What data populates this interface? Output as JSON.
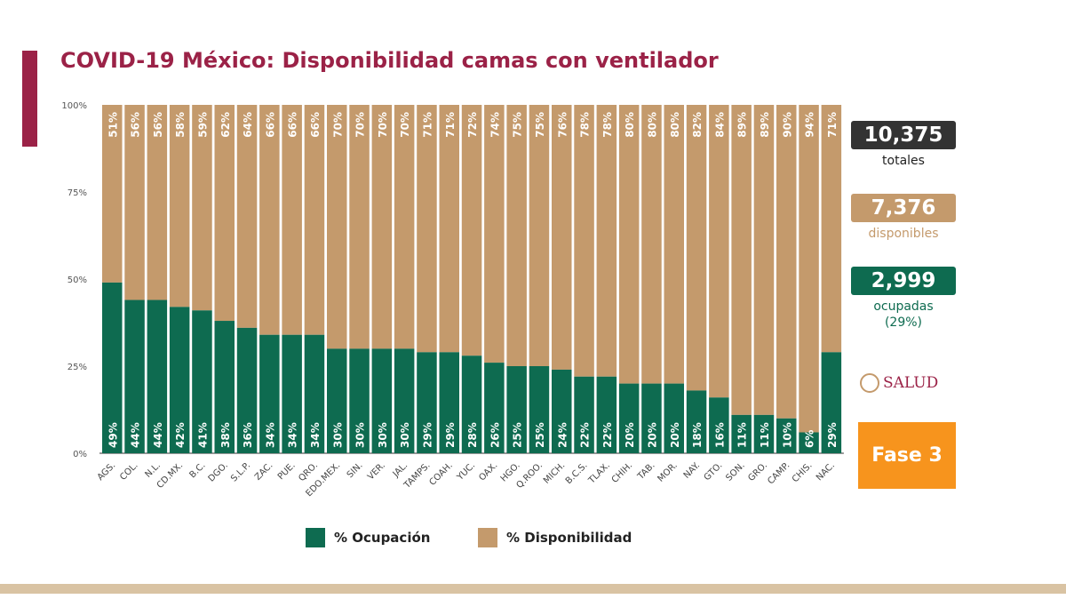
{
  "title": "COVID-19 México: Disponibilidad camas con ventilador",
  "colors": {
    "ocupacion": "#0e6b50",
    "disponibilidad": "#c49a6c",
    "title": "#9b2247",
    "fase": "#f7941d",
    "totales": "#333333"
  },
  "summary": {
    "totales_value": "10,375",
    "totales_label": "totales",
    "disponibles_value": "7,376",
    "disponibles_label": "disponibles",
    "ocupadas_value": "2,999",
    "ocupadas_label": "ocupadas",
    "ocupadas_pct": "(29%)"
  },
  "logo_text": "SALUD",
  "fase": "Fase 3",
  "chart_data": {
    "type": "bar",
    "stacked": true,
    "title": "",
    "ylim": [
      0,
      100
    ],
    "yticks": [
      "0%",
      "25%",
      "50%",
      "75%",
      "100%"
    ],
    "legend_position": "bottom",
    "categories": [
      "AGS.",
      "COL.",
      "N.L.",
      "CD.MX.",
      "B.C.",
      "DGO.",
      "S.L.P.",
      "ZAC.",
      "PUE.",
      "QRO.",
      "EDO.MEX.",
      "SIN.",
      "VER.",
      "JAL.",
      "TAMPS.",
      "COAH.",
      "YUC.",
      "OAX.",
      "HGO.",
      "Q.ROO.",
      "MICH.",
      "B.C.S.",
      "TLAX.",
      "CHIH.",
      "TAB.",
      "MOR.",
      "NAY.",
      "GTO.",
      "SON.",
      "GRO.",
      "CAMP.",
      "CHIS.",
      "NAC."
    ],
    "series": [
      {
        "name": "% Ocupación",
        "values": [
          49,
          44,
          44,
          42,
          41,
          38,
          36,
          34,
          34,
          34,
          30,
          30,
          30,
          30,
          29,
          29,
          28,
          26,
          25,
          25,
          24,
          22,
          22,
          20,
          20,
          20,
          18,
          16,
          11,
          11,
          10,
          6,
          29
        ]
      },
      {
        "name": "% Disponibilidad",
        "values": [
          51,
          56,
          56,
          58,
          59,
          62,
          64,
          66,
          66,
          66,
          70,
          70,
          70,
          70,
          71,
          71,
          72,
          74,
          75,
          75,
          76,
          78,
          78,
          80,
          80,
          80,
          82,
          84,
          89,
          89,
          90,
          94,
          71
        ]
      }
    ]
  }
}
